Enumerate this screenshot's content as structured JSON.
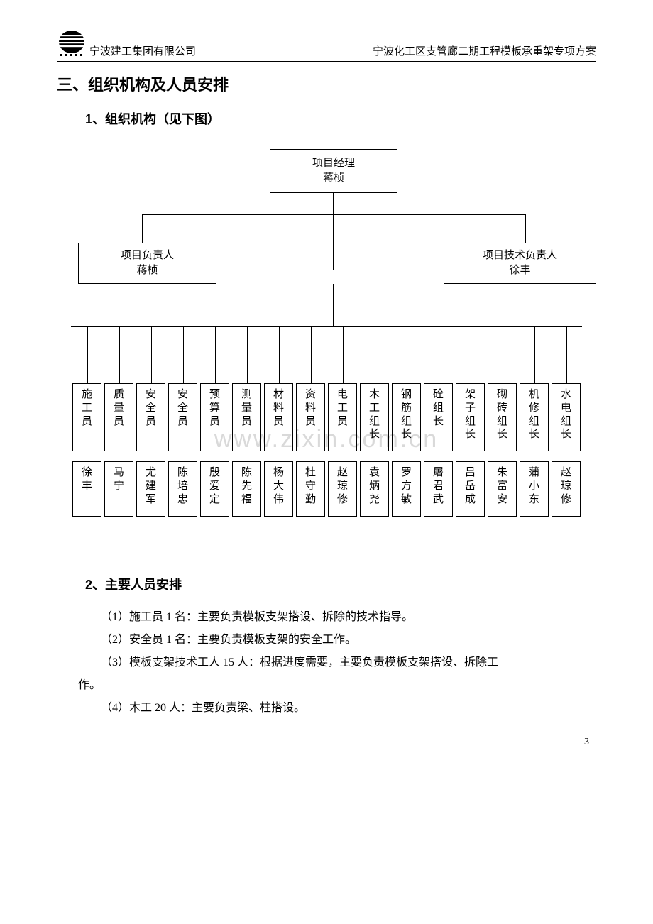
{
  "header": {
    "company": "宁波建工集团有限公司",
    "doc_title": "宁波化工区支管廊二期工程模板承重架专项方案"
  },
  "section_title": "三、组织机构及人员安排",
  "sub1_title": "1、组织机构（见下图）",
  "sub2_title": "2、主要人员安排",
  "org": {
    "top": {
      "line1": "项目经理",
      "line2": "蒋桢"
    },
    "left": {
      "line1": "项目负责人",
      "line2": "蒋桢"
    },
    "right": {
      "line1": "项目技术负责人",
      "line2": "徐丰"
    },
    "roles": [
      "施工员",
      "质量员",
      "安全员",
      "安全员",
      "预算员",
      "测量员",
      "材料员",
      "资料员",
      "电工员",
      "木工组长",
      "钢筋组长",
      "砼组长",
      "架子组长",
      "砌砖组长",
      "机修组长",
      "水电组长"
    ],
    "names": [
      "徐丰",
      "马宁",
      "尤建军",
      "陈培忠",
      "殷爱定",
      "陈先福",
      "杨大伟",
      "杜守勤",
      "赵琼修",
      "袁炳尧",
      "罗方敏",
      "屠君武",
      "吕岳成",
      "朱富安",
      "蒲小东",
      "赵琼修"
    ],
    "box_border_color": "#000000",
    "font_size_box": 15,
    "leaf_width": 41,
    "leaf_gap": 4
  },
  "paragraphs": {
    "p1": "（1）施工员 1 名：主要负责模板支架搭设、拆除的技术指导。",
    "p2": "（2）安全员 1 名：主要负责模板支架的安全工作。",
    "p3": "（3）模板支架技术工人 15 人：根据进度需要，主要负责模板支架搭设、拆除工",
    "p3b": "作。",
    "p4": "（4）木工 20 人：主要负责梁、柱搭设。"
  },
  "watermark": "www.zixin.com.cn",
  "page_number": "3",
  "colors": {
    "text": "#000000",
    "background": "#ffffff",
    "watermark": "#d9d9d9",
    "rule": "#000000"
  }
}
